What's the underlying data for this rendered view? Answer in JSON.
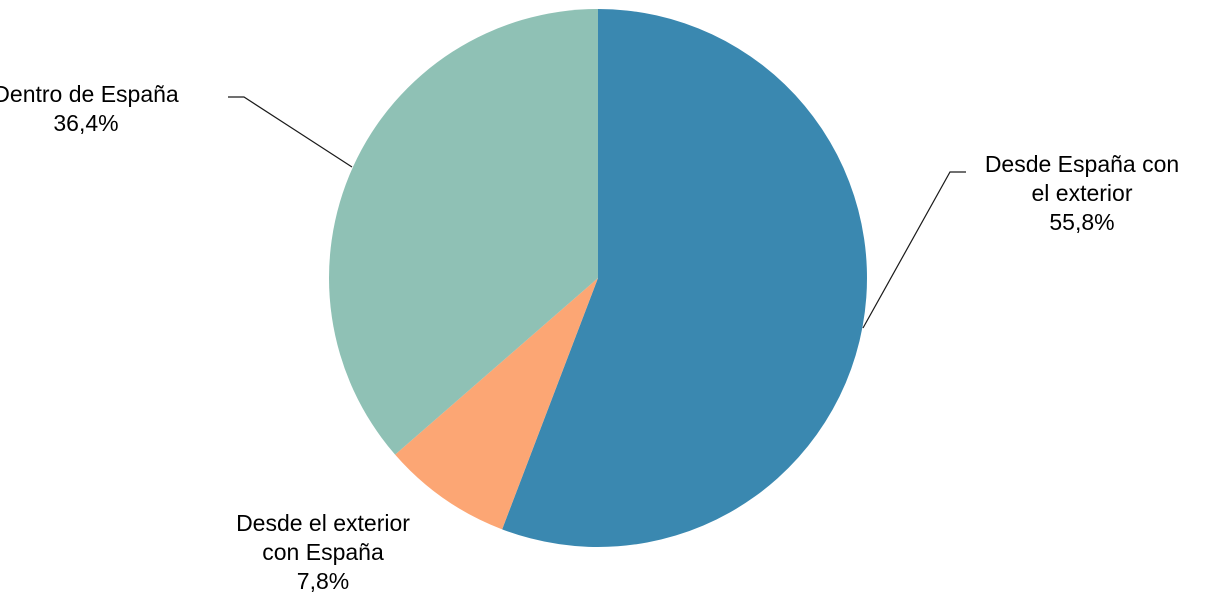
{
  "chart_data": {
    "type": "pie",
    "slices": [
      {
        "label_lines": [
          "Desde España con",
          "el exterior"
        ],
        "value": 55.8,
        "value_label": "55,8%",
        "color": "#3a88b0"
      },
      {
        "label_lines": [
          "Desde el exterior",
          "con España"
        ],
        "value": 7.8,
        "value_label": "7,8%",
        "color": "#fca674"
      },
      {
        "label_lines": [
          "Dentro de España"
        ],
        "value": 36.4,
        "value_label": "36,4%",
        "color": "#8fc1b5"
      }
    ],
    "start_angle_deg": 0,
    "direction": "clockwise",
    "legend": "none"
  }
}
